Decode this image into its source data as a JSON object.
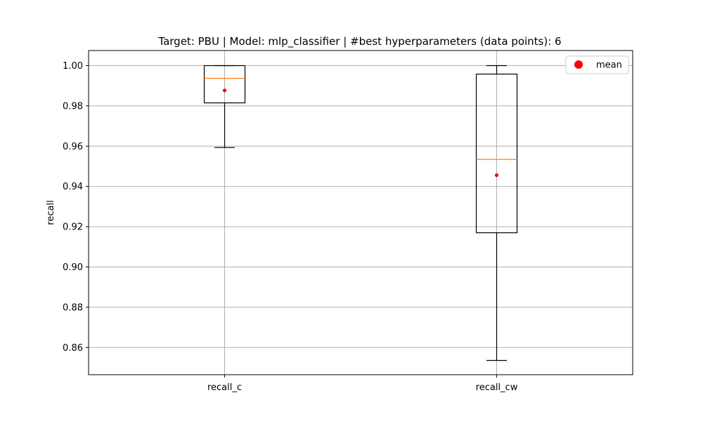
{
  "chart_data": {
    "type": "box",
    "title": "Target: PBU | Model: mlp_classifier | #best hyperparameters (data points): 6",
    "xlabel": "",
    "ylabel": "recall",
    "ylim": [
      0.8465,
      1.0075
    ],
    "yticks": [
      0.86,
      0.88,
      0.9,
      0.92,
      0.94,
      0.96,
      0.98,
      1.0
    ],
    "ytick_labels": [
      "0.86",
      "0.88",
      "0.90",
      "0.92",
      "0.94",
      "0.96",
      "0.98",
      "1.00"
    ],
    "grid": true,
    "legend": {
      "placement": "top-right",
      "entries": [
        {
          "label": "mean",
          "color": "#ff0000",
          "marker": "circle"
        }
      ]
    },
    "colors": {
      "box": "#000000",
      "median": "#ff7f0e",
      "mean": "#ff0000",
      "grid": "#b0b0b0"
    },
    "categories": [
      "recall_c",
      "recall_cw"
    ],
    "boxes": [
      {
        "category": "recall_c",
        "whislo": 0.9593,
        "q1": 0.9815,
        "median": 0.9937,
        "q3": 1.0,
        "whishi": 1.0,
        "mean": 0.9877
      },
      {
        "category": "recall_cw",
        "whislo": 0.8536,
        "q1": 0.917,
        "median": 0.9534,
        "q3": 0.9958,
        "whishi": 1.0,
        "mean": 0.9456
      }
    ]
  }
}
